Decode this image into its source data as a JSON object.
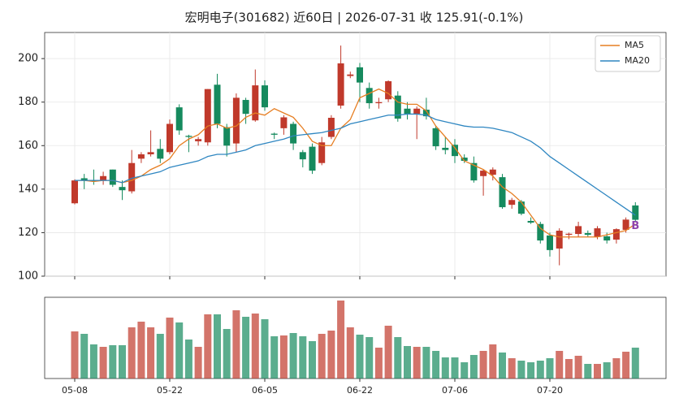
{
  "chart_data": {
    "type": "candlestick",
    "title": "宏明电子(301682) 近60日  |  2026-07-31 收 125.91(-0.1%)",
    "categories": [
      "05-08",
      null,
      null,
      null,
      null,
      null,
      null,
      null,
      null,
      null,
      "05-22",
      null,
      null,
      null,
      null,
      null,
      null,
      null,
      null,
      null,
      "06-05",
      null,
      null,
      null,
      null,
      null,
      null,
      null,
      null,
      null,
      "06-22",
      null,
      null,
      null,
      null,
      null,
      null,
      null,
      null,
      null,
      "07-06",
      null,
      null,
      null,
      null,
      null,
      null,
      null,
      null,
      null,
      "07-20",
      null,
      null,
      null,
      null,
      null,
      null,
      null,
      null,
      null
    ],
    "open": [
      133.5,
      145,
      144,
      144,
      149,
      141,
      139,
      154,
      156,
      158.5,
      157,
      177.6,
      164.5,
      162,
      161.5,
      188,
      168.5,
      161,
      181,
      171.6,
      187.7,
      165.5,
      168,
      170,
      157,
      159.5,
      152,
      164,
      178.4,
      192,
      196,
      186.5,
      179.5,
      181.3,
      183,
      177,
      174.6,
      176.5,
      168,
      159,
      160.4,
      154.5,
      152,
      146,
      146.6,
      145.5,
      132.8,
      134.3,
      125.4,
      124,
      118.7,
      112.7,
      119,
      119.4,
      119.8,
      118,
      118.3,
      116.8,
      121.3,
      132.5
    ],
    "high": [
      144.5,
      147,
      149,
      148,
      149,
      144,
      158,
      157,
      167,
      163,
      172,
      179,
      165,
      164,
      186,
      193,
      170,
      184,
      182,
      195,
      190,
      166,
      174,
      171,
      158,
      161,
      164,
      174,
      206,
      194,
      198,
      189,
      182,
      190,
      185,
      180,
      178,
      182,
      169,
      164,
      163,
      156,
      155,
      149,
      150,
      147,
      136,
      135,
      127,
      125,
      120,
      122,
      120,
      125,
      121,
      123,
      120,
      122,
      127,
      134
    ],
    "low": [
      133,
      140,
      142,
      142,
      141,
      135,
      138,
      152,
      155,
      152,
      156,
      165,
      157,
      160,
      160,
      168,
      155,
      157,
      170,
      171,
      176,
      163,
      165,
      158,
      150,
      147,
      151,
      163,
      177,
      191,
      180,
      177,
      177,
      180,
      171,
      172,
      163,
      172,
      158,
      156,
      152,
      152,
      143,
      137,
      144,
      131,
      131,
      128,
      124,
      115,
      109,
      105,
      117,
      118,
      118,
      117,
      115,
      115,
      120,
      125
    ],
    "close": [
      144,
      144,
      143.5,
      146,
      142,
      139.5,
      152,
      156,
      157,
      154,
      170,
      167,
      164,
      163,
      186,
      170,
      160,
      182,
      174.6,
      187.7,
      177.6,
      165,
      173,
      161,
      153.7,
      148.5,
      161.5,
      172.8,
      197.8,
      192.7,
      189,
      179.5,
      180,
      189.6,
      172.4,
      174.6,
      177,
      173.5,
      159.7,
      158,
      155.2,
      153,
      144,
      148.5,
      149,
      131.7,
      135,
      128.7,
      124.6,
      116.4,
      112,
      120.9,
      119.5,
      123,
      119,
      122,
      116.4,
      121.6,
      126,
      125.91
    ],
    "up_color": "#c0392b",
    "down_color": "#168a5e",
    "series": [
      {
        "name": "MA5",
        "color": "#e67e22",
        "values": [
          144,
          144,
          143.5,
          144,
          144,
          143,
          144,
          146,
          149,
          151,
          154,
          160,
          163,
          165,
          169,
          170,
          168,
          169,
          173,
          175,
          174,
          177,
          175,
          173,
          168,
          162,
          160,
          160,
          168,
          172,
          182,
          184,
          186,
          184,
          180,
          179,
          179,
          176,
          169,
          164,
          159,
          153,
          151,
          149,
          146,
          141,
          138,
          134,
          128,
          122,
          119,
          118,
          118,
          118,
          118,
          118,
          119,
          120,
          121,
          124
        ]
      },
      {
        "name": "MA20",
        "color": "#2e86c1",
        "values": [
          144,
          144,
          144,
          144,
          144,
          143,
          145,
          146,
          147,
          148,
          150,
          151,
          152,
          153,
          155,
          156,
          156,
          157,
          158,
          160,
          161,
          162,
          163,
          164.5,
          165,
          165.5,
          166,
          167,
          168,
          170,
          171,
          172,
          173,
          174,
          174,
          174.5,
          174.5,
          174,
          172,
          171,
          170,
          169,
          168.5,
          168.5,
          168,
          167,
          166,
          164,
          162,
          159,
          155,
          152,
          149,
          146,
          143,
          140,
          137,
          134,
          131,
          128
        ]
      }
    ],
    "ylim": [
      100,
      212
    ],
    "yticks": [
      100,
      120,
      140,
      160,
      180,
      200
    ],
    "grid": true,
    "legend": "upper right",
    "annotation": {
      "text": "B",
      "color": "#8e44ad"
    },
    "volume": {
      "ylim": [
        0,
        100
      ],
      "values": [
        58,
        55,
        42,
        39,
        41,
        41,
        63,
        70,
        63,
        55,
        75,
        69,
        48,
        39,
        79,
        79,
        61,
        84,
        76,
        80,
        73,
        52,
        53,
        56,
        52,
        46,
        55,
        59,
        96,
        63,
        54,
        51,
        38,
        65,
        51,
        40,
        39,
        39,
        34,
        26,
        26,
        20,
        29,
        34,
        42,
        32,
        25,
        22,
        20,
        22,
        25,
        34,
        24,
        28,
        18,
        18,
        20,
        25,
        33,
        38
      ]
    }
  }
}
